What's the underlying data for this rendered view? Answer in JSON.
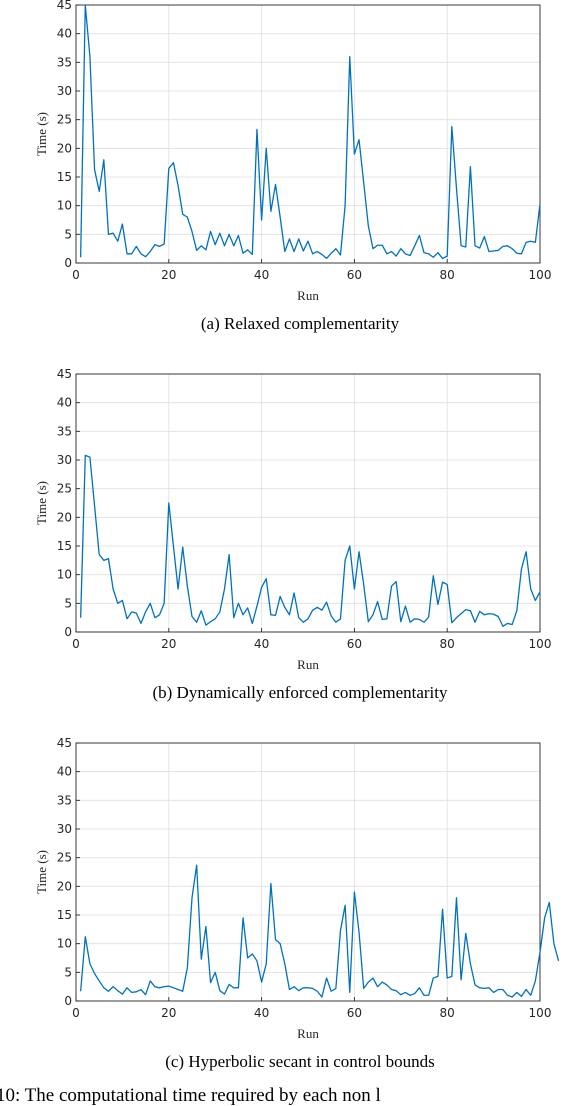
{
  "figure_caption": "10: The computational time required by each non l",
  "colors": {
    "line": "#0072bd",
    "grid": "#dfdfdf",
    "axes": "#262626"
  },
  "chart_data": [
    {
      "type": "line",
      "caption": "(a) Relaxed complementarity",
      "xlabel": "Run",
      "ylabel": "Time (s)",
      "xlim": [
        0,
        100
      ],
      "ylim": [
        0,
        45
      ],
      "xticks": [
        0,
        20,
        40,
        60,
        80,
        100
      ],
      "yticks": [
        0,
        5,
        10,
        15,
        20,
        25,
        30,
        35,
        40,
        45
      ],
      "grid": true,
      "series": [
        {
          "values": [
            1,
            45,
            36,
            16.3,
            12.5,
            18,
            5,
            5.2,
            3.8,
            6.8,
            1.6,
            1.6,
            2.9,
            1.6,
            1.1,
            2,
            3.2,
            2.9,
            3.3,
            16.5,
            17.5,
            13.5,
            8.5,
            8,
            5.5,
            2.2,
            3,
            2.3,
            5.5,
            3.2,
            5.2,
            3,
            5,
            3,
            4.8,
            1.7,
            2.3,
            1.5,
            23.3,
            7.5,
            20,
            9,
            13.7,
            8,
            2,
            4.2,
            2,
            4.2,
            2.1,
            3.8,
            1.6,
            2,
            1.5,
            0.8,
            1.7,
            2.5,
            1.4,
            10,
            36,
            19,
            21.5,
            14,
            6.5,
            2.5,
            3.1,
            3.1,
            1.6,
            2,
            1.2,
            2.5,
            1.6,
            1.3,
            3,
            4.8,
            1.8,
            1.6,
            1,
            1.8,
            0.8,
            1.2,
            23.8,
            13,
            3,
            2.8,
            16.8,
            3,
            2.6,
            4.6,
            2,
            2.1,
            2.2,
            2.9,
            3,
            2.5,
            1.7,
            1.6,
            3.6,
            3.8,
            3.6,
            10.3
          ]
        }
      ]
    },
    {
      "type": "line",
      "caption": "(b) Dynamically enforced complementarity",
      "xlabel": "Run",
      "ylabel": "Time (s)",
      "xlim": [
        0,
        100
      ],
      "ylim": [
        0,
        45
      ],
      "xticks": [
        0,
        20,
        40,
        60,
        80,
        100
      ],
      "yticks": [
        0,
        5,
        10,
        15,
        20,
        25,
        30,
        35,
        40,
        45
      ],
      "grid": true,
      "series": [
        {
          "values": [
            2.5,
            30.8,
            30.5,
            22,
            13.5,
            12.5,
            12.8,
            7.5,
            5,
            5.5,
            2.3,
            3.5,
            3.3,
            1.5,
            3.5,
            5,
            2.5,
            3,
            5,
            22.5,
            15,
            7.5,
            14.8,
            8,
            2.7,
            1.7,
            3.7,
            1.2,
            1.8,
            2.3,
            3.5,
            7.5,
            13.5,
            2.5,
            5,
            3,
            4.2,
            1.5,
            4.5,
            7.8,
            9.3,
            3,
            2.9,
            6.2,
            4.3,
            3,
            6.8,
            2.5,
            1.7,
            2.3,
            3.8,
            4.3,
            3.8,
            5.2,
            2.8,
            1.7,
            2.3,
            12.5,
            15,
            7.5,
            14,
            8.3,
            1.8,
            3,
            5.3,
            2.2,
            2.3,
            8,
            8.8,
            1.8,
            4.5,
            1.7,
            2.3,
            2.2,
            1.7,
            2.6,
            9.8,
            4.8,
            8.7,
            8.3,
            1.6,
            2.5,
            3.2,
            3.9,
            3.7,
            1.7,
            3.6,
            3,
            3.2,
            3.1,
            2.7,
            1,
            1.5,
            1.3,
            3.7,
            11,
            14,
            7.5,
            5.5,
            7
          ]
        }
      ]
    },
    {
      "type": "line",
      "caption": "(c) Hyperbolic secant in control bounds",
      "xlabel": "Run",
      "ylabel": "Time (s)",
      "xlim": [
        0,
        100
      ],
      "ylim": [
        0,
        45
      ],
      "xticks": [
        0,
        20,
        40,
        60,
        80,
        100
      ],
      "yticks": [
        0,
        5,
        10,
        15,
        20,
        25,
        30,
        35,
        40,
        45
      ],
      "grid": true,
      "series": [
        {
          "values": [
            1.7,
            11.2,
            6.5,
            4.8,
            3.5,
            2.3,
            1.7,
            2.5,
            1.8,
            1.2,
            2.3,
            1.5,
            1.6,
            2,
            1.1,
            3.5,
            2.5,
            2.3,
            2.5,
            2.6,
            2.3,
            2,
            1.7,
            5.8,
            18,
            23.7,
            7.3,
            13,
            3.2,
            5,
            1.8,
            1.2,
            2.9,
            2.3,
            2.3,
            14.5,
            7.5,
            8.2,
            7,
            3.3,
            6.5,
            20.5,
            10.7,
            10,
            6.5,
            2,
            2.5,
            1.8,
            2.3,
            2.3,
            2.2,
            1.7,
            0.7,
            4,
            1.7,
            2.2,
            12.3,
            16.7,
            1.5,
            19,
            12,
            2.2,
            3.3,
            4,
            2.5,
            3.3,
            2.8,
            2,
            1.8,
            1.1,
            1.5,
            1,
            1.3,
            2.3,
            1,
            1,
            4,
            4.3,
            16,
            4,
            4.3,
            18,
            3.7,
            11.8,
            6.5,
            2.8,
            2.3,
            2.2,
            2.3,
            1.5,
            2,
            2,
            1,
            0.7,
            1.5,
            0.8,
            2,
            1,
            3.5,
            8.5,
            14.5,
            17.2,
            10,
            7
          ]
        }
      ]
    }
  ]
}
